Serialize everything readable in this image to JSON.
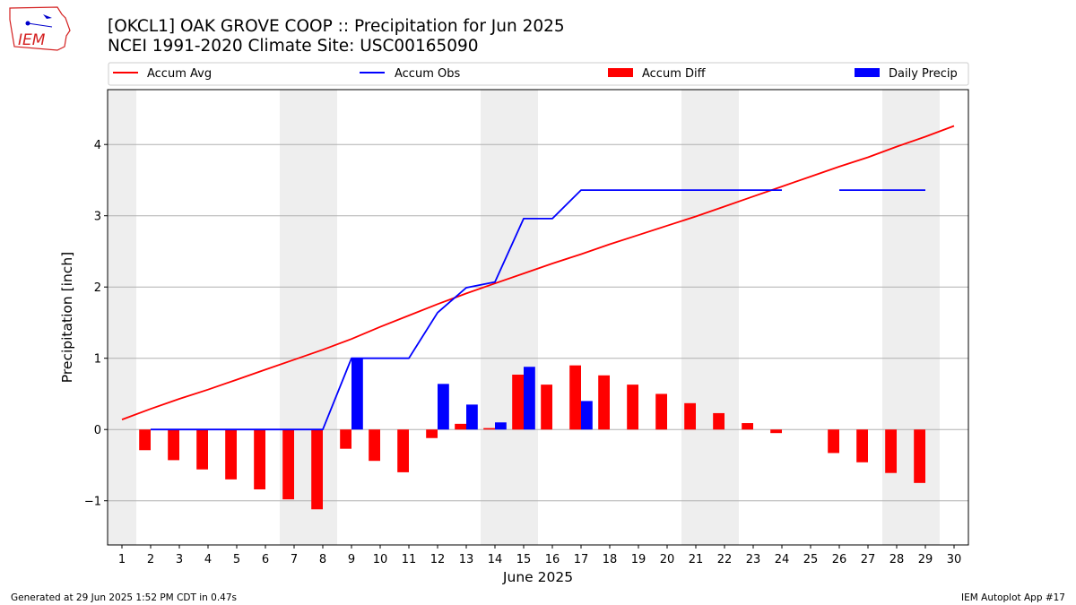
{
  "header": {
    "logo_text": "IEM",
    "title": "[OKCL1] OAK GROVE COOP :: Precipitation for Jun 2025",
    "subtitle": "NCEI 1991-2020 Climate Site: USC00165090"
  },
  "footer": {
    "left": "Generated at 29 Jun 2025 1:52 PM CDT in 0.47s",
    "right": "IEM Autoplot App #17"
  },
  "colors": {
    "avg": "#ff0000",
    "obs": "#0000ff",
    "diff": "#ff0000",
    "daily": "#0000ff",
    "weekend_shade": "#eeeeee",
    "grid": "#b0b0b0",
    "logo": "#d42020"
  },
  "chart_data": {
    "type": "bar",
    "xlabel": "June 2025",
    "ylabel": "Precipitation [inch]",
    "xlim": [
      0.5,
      30.5
    ],
    "ylim": [
      -1.62,
      4.77
    ],
    "x_ticks": [
      1,
      2,
      3,
      4,
      5,
      6,
      7,
      8,
      9,
      10,
      11,
      12,
      13,
      14,
      15,
      16,
      17,
      18,
      19,
      20,
      21,
      22,
      23,
      24,
      25,
      26,
      27,
      28,
      29,
      30
    ],
    "y_ticks": [
      -1,
      0,
      1,
      2,
      3,
      4
    ],
    "grid": "horizontal",
    "legend_position": "top",
    "legend": [
      "Accum Avg",
      "Accum Obs",
      "Accum Diff",
      "Daily Precip"
    ],
    "weekend_shading": [
      [
        0.5,
        1.5
      ],
      [
        6.5,
        8.5
      ],
      [
        13.5,
        15.5
      ],
      [
        20.5,
        22.5
      ],
      [
        27.5,
        29.5
      ]
    ],
    "series": [
      {
        "name": "Accum Avg",
        "type": "line",
        "x": [
          1,
          2,
          3,
          4,
          5,
          6,
          7,
          8,
          9,
          10,
          11,
          12,
          13,
          14,
          15,
          16,
          17,
          18,
          19,
          20,
          21,
          22,
          23,
          24,
          25,
          26,
          27,
          28,
          29,
          30
        ],
        "values": [
          0.14,
          0.29,
          0.43,
          0.56,
          0.7,
          0.84,
          0.98,
          1.12,
          1.27,
          1.44,
          1.6,
          1.76,
          1.91,
          2.05,
          2.19,
          2.33,
          2.46,
          2.6,
          2.73,
          2.86,
          2.99,
          3.13,
          3.27,
          3.41,
          3.55,
          3.69,
          3.82,
          3.97,
          4.11,
          4.26
        ]
      },
      {
        "name": "Accum Obs",
        "type": "line",
        "x": [
          2,
          3,
          4,
          5,
          6,
          7,
          8,
          9,
          10,
          11,
          12,
          13,
          14,
          15,
          16,
          17,
          18,
          19,
          20,
          21,
          22,
          23,
          24,
          25,
          26,
          27,
          28,
          29
        ],
        "values": [
          0,
          0,
          0,
          0,
          0,
          0,
          0,
          1.0,
          1.0,
          1.0,
          1.64,
          1.99,
          2.07,
          2.96,
          2.96,
          3.36,
          3.36,
          3.36,
          3.36,
          3.36,
          3.36,
          3.36,
          3.36,
          null,
          3.36,
          3.36,
          3.36,
          3.36
        ]
      },
      {
        "name": "Accum Diff",
        "type": "bar",
        "x": [
          2,
          3,
          4,
          5,
          6,
          7,
          8,
          9,
          10,
          11,
          12,
          13,
          14,
          15,
          16,
          17,
          18,
          19,
          20,
          21,
          22,
          23,
          24,
          26,
          27,
          28,
          29
        ],
        "values": [
          -0.29,
          -0.43,
          -0.56,
          -0.7,
          -0.84,
          -0.98,
          -1.12,
          -0.27,
          -0.44,
          -0.6,
          -0.12,
          0.08,
          0.02,
          0.77,
          0.63,
          0.9,
          0.76,
          0.63,
          0.5,
          0.37,
          0.23,
          0.09,
          -0.05,
          -0.33,
          -0.46,
          -0.61,
          -0.75
        ]
      },
      {
        "name": "Daily Precip",
        "type": "bar",
        "x": [
          9,
          12,
          13,
          14,
          15,
          17
        ],
        "values": [
          1.0,
          0.64,
          0.35,
          0.1,
          0.88,
          0.4
        ]
      }
    ]
  }
}
